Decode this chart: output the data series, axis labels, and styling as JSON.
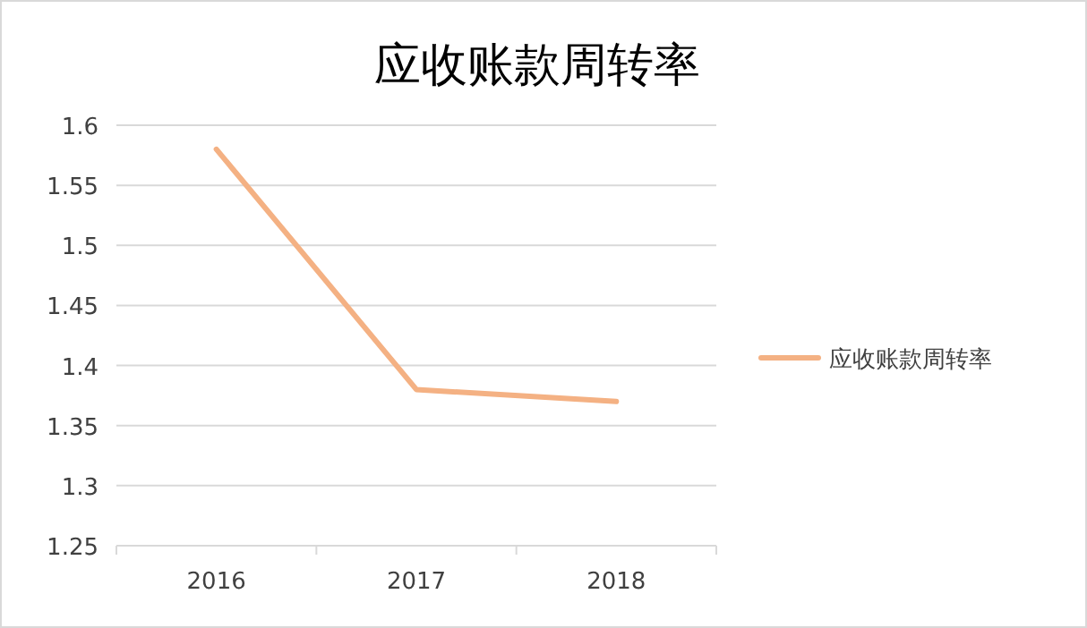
{
  "chart_data": {
    "type": "line",
    "title": "应收账款周转率",
    "categories": [
      "2016",
      "2017",
      "2018"
    ],
    "series": [
      {
        "name": "应收账款周转率",
        "color": "#f4b183",
        "values": [
          1.58,
          1.38,
          1.37
        ]
      }
    ],
    "ylim": [
      1.25,
      1.6
    ],
    "yticks": [
      1.25,
      1.3,
      1.35,
      1.4,
      1.45,
      1.5,
      1.55,
      1.6
    ],
    "grid": "y",
    "legend": "right"
  }
}
